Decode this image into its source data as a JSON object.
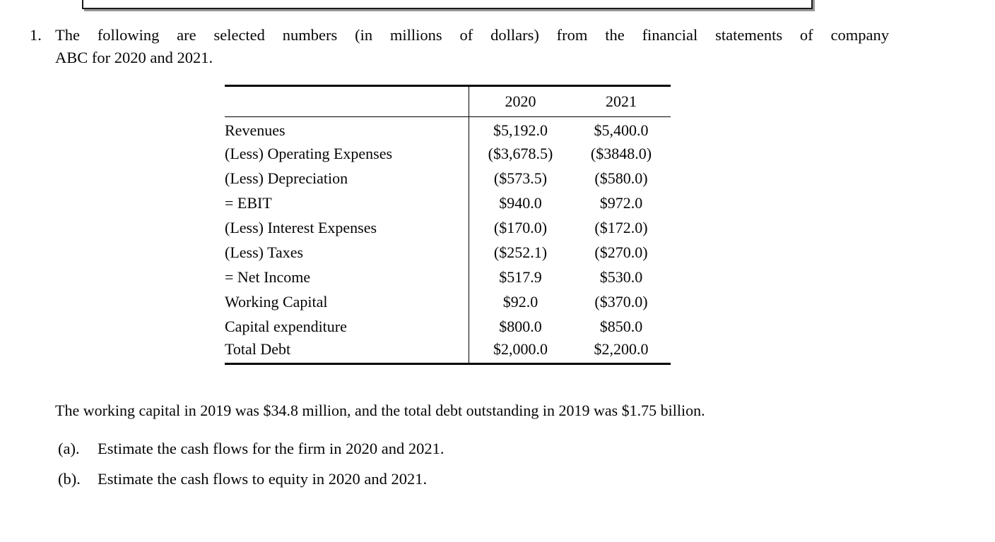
{
  "problem": {
    "number": "1.",
    "line1": "The following are selected numbers (in millions of dollars) from the financial statements of company",
    "line2": "ABC for 2020 and 2021."
  },
  "table": {
    "headers": {
      "label": "",
      "y2020": "2020",
      "y2021": "2021"
    },
    "rows": [
      {
        "label": "Revenues",
        "y2020": "$5,192.0",
        "y2021": "$5,400.0"
      },
      {
        "label": "(Less) Operating Expenses",
        "y2020": "($3,678.5)",
        "y2021": "($3848.0)"
      },
      {
        "label": "(Less) Depreciation",
        "y2020": "($573.5)",
        "y2021": "($580.0)"
      },
      {
        "label": "= EBIT",
        "y2020": "$940.0",
        "y2021": "$972.0"
      },
      {
        "label": "(Less) Interest Expenses",
        "y2020": "($170.0)",
        "y2021": "($172.0)"
      },
      {
        "label": "(Less) Taxes",
        "y2020": "($252.1)",
        "y2021": "($270.0)"
      },
      {
        "label": "= Net Income",
        "y2020": "$517.9",
        "y2021": "$530.0"
      },
      {
        "label": "Working Capital",
        "y2020": "$92.0",
        "y2021": "($370.0)"
      },
      {
        "label": "Capital expenditure",
        "y2020": "$800.0",
        "y2021": "$850.0"
      },
      {
        "label": "Total Debt",
        "y2020": "$2,000.0",
        "y2021": "$2,200.0"
      }
    ]
  },
  "note": "The working capital in 2019 was $34.8 million, and the total debt outstanding in 2019 was $1.75 billion.",
  "parts": [
    {
      "label": "(a).",
      "text": "Estimate the cash flows for the firm in 2020 and 2021."
    },
    {
      "label": "(b).",
      "text": "Estimate the cash flows to equity in 2020 and 2021."
    }
  ],
  "colors": {
    "text": "#060606",
    "rule": "#000000",
    "box_shadow": "#969696"
  }
}
